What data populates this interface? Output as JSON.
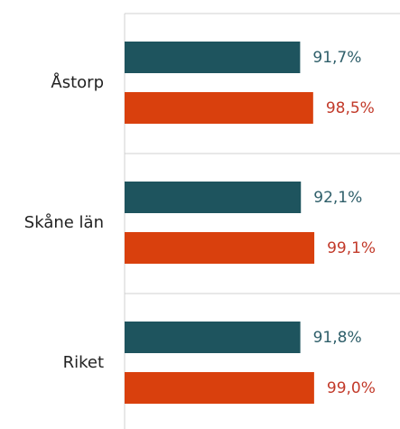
{
  "chart_data": {
    "type": "barh",
    "categories": [
      "Åstorp",
      "Skåne län",
      "Riket"
    ],
    "series": [
      {
        "color": "#1e545e",
        "values": [
          91.7,
          92.1,
          91.8
        ],
        "value_labels": [
          "91,7%",
          "92,1%",
          "91,8%"
        ]
      },
      {
        "color": "#d9400d",
        "values": [
          98.5,
          99.1,
          99.0
        ],
        "value_labels": [
          "98,5%",
          "99,1%",
          "99,0%"
        ]
      }
    ],
    "xlim": [
      0,
      100
    ]
  }
}
